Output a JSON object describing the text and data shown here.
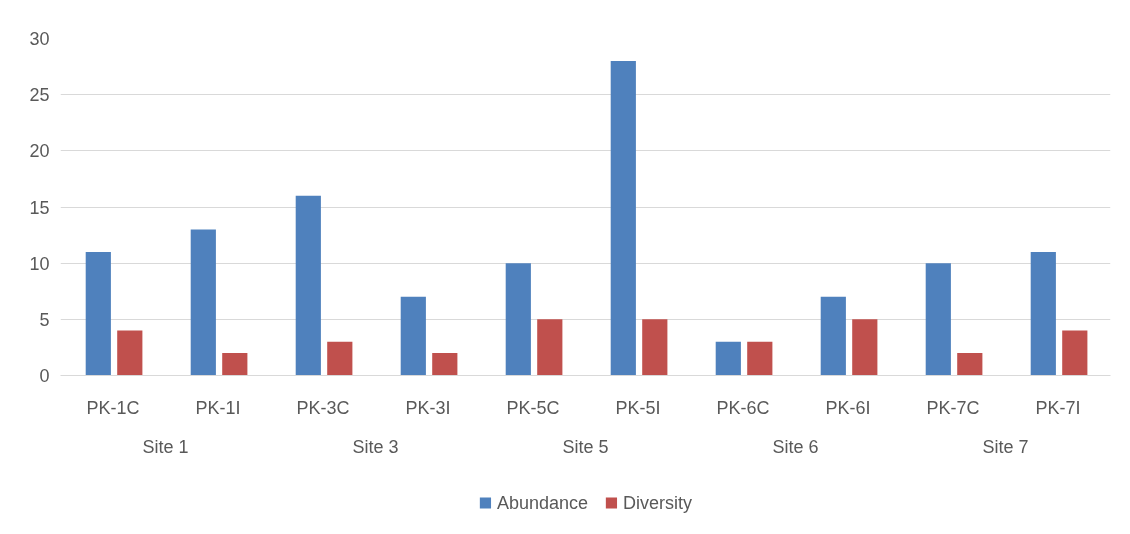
{
  "chart_data": {
    "type": "bar",
    "categories": [
      "PK-1C",
      "PK-1I",
      "PK-3C",
      "PK-3I",
      "PK-5C",
      "PK-5I",
      "PK-6C",
      "PK-6I",
      "PK-7C",
      "PK-7I"
    ],
    "series": [
      {
        "name": "Abundance",
        "color": "#4f81bd",
        "values": [
          11,
          13,
          16,
          7,
          10,
          28,
          3,
          7,
          10,
          11
        ]
      },
      {
        "name": "Diversity",
        "color": "#c0504d",
        "values": [
          4,
          2,
          3,
          2,
          5,
          5,
          3,
          5,
          2,
          4
        ]
      }
    ],
    "annotations": [
      "Site 1",
      "Site 3",
      "Site 5",
      "Site 6",
      "Site 7"
    ],
    "ylim": [
      0,
      30
    ],
    "yticks": [
      0,
      5,
      10,
      15,
      20,
      25,
      30
    ],
    "grid": "y",
    "legend": "bottom"
  }
}
